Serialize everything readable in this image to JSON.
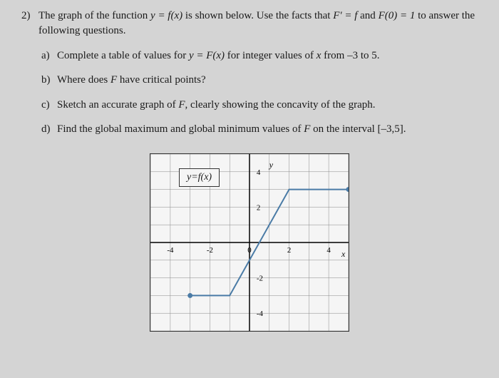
{
  "problem": {
    "number": "2)",
    "intro_part1": "The graph of the function ",
    "intro_eq1": "y = f(x)",
    "intro_part2": " is shown below. Use the facts that ",
    "intro_eq2": "F' = f",
    "intro_part3": " and ",
    "intro_eq3": "F(0) = 1",
    "intro_part4": " to answer the following questions."
  },
  "parts": {
    "a": {
      "label": "a)",
      "text1": "Complete a table of values for ",
      "eq": "y = F(x)",
      "text2": " for integer values of ",
      "var": "x",
      "text3": " from –3 to 5."
    },
    "b": {
      "label": "b)",
      "text1": "Where does ",
      "var": "F",
      "text2": " have critical points?"
    },
    "c": {
      "label": "c)",
      "text1": "Sketch an accurate graph of ",
      "var": "F",
      "text2": ", clearly showing the concavity of the graph."
    },
    "d": {
      "label": "d)",
      "text1": "Find the global maximum and global minimum values of ",
      "var": "F",
      "text2": " on the interval [–3,5]."
    }
  },
  "graph": {
    "function_label": "y=f(x)",
    "x_axis_label": "x",
    "y_axis_label": "y",
    "x_range": [
      -5,
      5
    ],
    "y_range": [
      -5,
      5
    ],
    "x_ticks": [
      -4,
      -2,
      0,
      2,
      4
    ],
    "y_ticks": [
      -4,
      -2,
      0,
      2,
      4
    ],
    "x_tick_labels": [
      "-4",
      "-2",
      "0",
      "2",
      "4"
    ],
    "y_tick_labels": [
      "-4",
      "-2",
      "2",
      "4"
    ],
    "grid_color": "#888",
    "axis_color": "#000",
    "line_color": "#4a7ba6",
    "point_color": "#4a7ba6",
    "background_color": "#f5f5f5",
    "polyline_points": [
      {
        "x": -3,
        "y": -3
      },
      {
        "x": -1,
        "y": -3
      },
      {
        "x": 2,
        "y": 3
      },
      {
        "x": 5,
        "y": 3
      }
    ],
    "endpoint_markers": [
      {
        "x": -3,
        "y": -3
      },
      {
        "x": 5,
        "y": 3
      }
    ]
  }
}
